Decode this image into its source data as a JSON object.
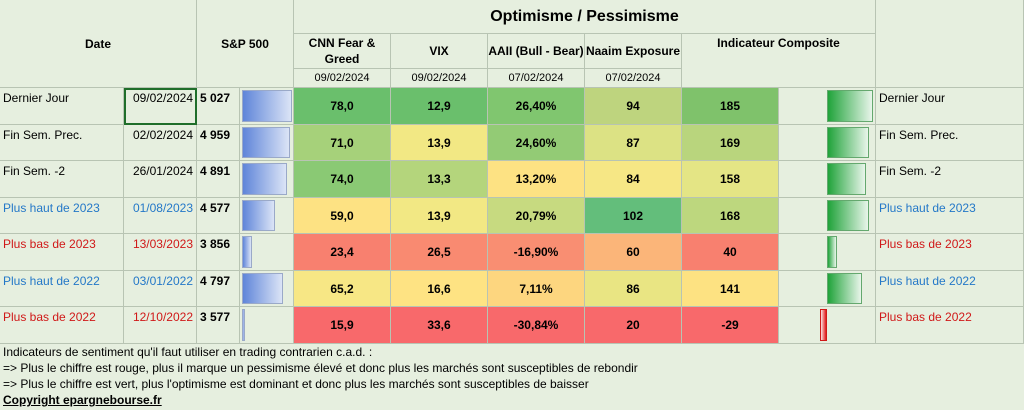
{
  "header": {
    "date": "Date",
    "sp500": "S&P 500",
    "group_title": "Optimisme / Pessimisme",
    "columns": [
      {
        "label": "CNN Fear & Greed",
        "date": "09/02/2024"
      },
      {
        "label": "VIX",
        "date": "09/02/2024"
      },
      {
        "label": "AAII (Bull - Bear)",
        "date": "07/02/2024"
      },
      {
        "label": "Naaim Exposure",
        "date": "07/02/2024"
      },
      {
        "label": "Indicateur Composite",
        "date": ""
      }
    ]
  },
  "rows": [
    {
      "label": "Dernier Jour",
      "date": "09/02/2024",
      "sp500": "5 027",
      "sp_fill": 1.0,
      "cnn": "78,0",
      "vix": "12,9",
      "aaii": "26,40%",
      "naaim": "94",
      "composite": "185",
      "comp_value": 185,
      "label_style": "black",
      "colors": {
        "cnn": "#6abf6c",
        "vix": "#6abf6c",
        "aaii": "#80c66f",
        "naaim": "#bed47e",
        "comp": "#7fc26b"
      }
    },
    {
      "label": "Fin Sem. Prec.",
      "date": "02/02/2024",
      "sp500": "4 959",
      "sp_fill": 0.95,
      "cnn": "71,0",
      "vix": "13,9",
      "aaii": "24,60%",
      "naaim": "87",
      "composite": "169",
      "comp_value": 169,
      "label_style": "black",
      "colors": {
        "cnn": "#a6d17a",
        "vix": "#f2e884",
        "aaii": "#93cb75",
        "naaim": "#dce284",
        "comp": "#b9d57d"
      }
    },
    {
      "label": "Fin Sem. -2",
      "date": "26/01/2024",
      "sp500": "4 891",
      "sp_fill": 0.9,
      "cnn": "74,0",
      "vix": "13,3",
      "aaii": "13,20%",
      "naaim": "84",
      "composite": "158",
      "comp_value": 158,
      "label_style": "black",
      "colors": {
        "cnn": "#8ac974",
        "vix": "#b4d57c",
        "aaii": "#fde283",
        "naaim": "#f6e785",
        "comp": "#e4e585"
      }
    },
    {
      "label": "Plus haut de 2023",
      "date": "01/08/2023",
      "sp500": "4 577",
      "sp_fill": 0.66,
      "cnn": "59,0",
      "vix": "13,9",
      "aaii": "20,79%",
      "naaim": "102",
      "composite": "168",
      "comp_value": 168,
      "label_style": "blue",
      "colors": {
        "cnn": "#fde283",
        "vix": "#f2e884",
        "aaii": "#c7da80",
        "naaim": "#63be7b",
        "comp": "#bdd77e"
      }
    },
    {
      "label": "Plus bas de 2023",
      "date": "13/03/2023",
      "sp500": "3 856",
      "sp_fill": 0.2,
      "cnn": "23,4",
      "vix": "26,5",
      "aaii": "-16,90%",
      "naaim": "60",
      "composite": "40",
      "comp_value": 40,
      "label_style": "red",
      "colors": {
        "cnn": "#f8806f",
        "vix": "#f98a71",
        "aaii": "#f98e72",
        "naaim": "#fbb579",
        "comp": "#f8806f"
      }
    },
    {
      "label": "Plus haut de 2022",
      "date": "03/01/2022",
      "sp500": "4 797",
      "sp_fill": 0.82,
      "cnn": "65,2",
      "vix": "16,6",
      "aaii": "7,11%",
      "naaim": "86",
      "composite": "141",
      "comp_value": 141,
      "label_style": "blue",
      "colors": {
        "cnn": "#f7e785",
        "vix": "#fee383",
        "aaii": "#fdd67f",
        "naaim": "#e9e583",
        "comp": "#fde282"
      }
    },
    {
      "label": "Plus bas de 2022",
      "date": "12/10/2022",
      "sp500": "3 577",
      "sp_fill": 0.05,
      "cnn": "15,9",
      "vix": "33,6",
      "aaii": "-30,84%",
      "naaim": "20",
      "composite": "-29",
      "comp_value": -29,
      "label_style": "red",
      "colors": {
        "cnn": "#f8696b",
        "vix": "#f8696b",
        "aaii": "#f8696b",
        "naaim": "#f8696b",
        "comp": "#f8696b"
      }
    }
  ],
  "notes": [
    "Indicateurs de sentiment qu'il faut utiliser en trading contrarien c.a.d. :",
    "=> Plus le chiffre est rouge, plus il marque un pessimisme élevé et donc plus les marchés sont susceptibles de rebondir",
    "=> Plus le chiffre est vert, plus l'optimisme est dominant et donc plus les marchés sont susceptibles de baisser"
  ],
  "copyright": "Copyright epargnebourse.fr"
}
